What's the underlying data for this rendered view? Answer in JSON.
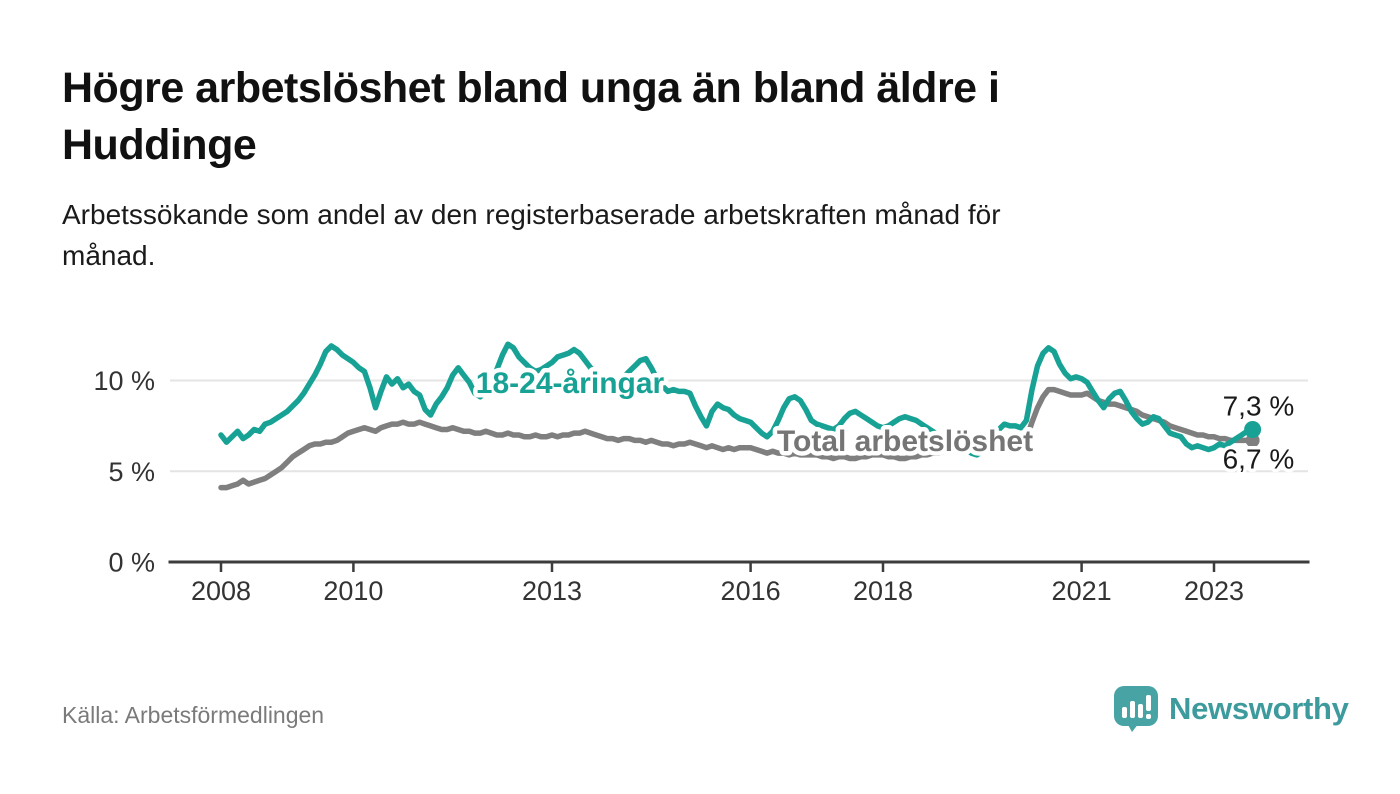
{
  "header": {
    "title_line1": "Högre arbetslöshet bland unga än bland äldre i",
    "title_line2": "Huddinge",
    "subtitle_line1": "Arbetssökande som andel av den registerbaserade arbetskraften månad för",
    "subtitle_line2": "månad."
  },
  "footer": {
    "source": "Källa: Arbetsförmedlingen",
    "brand": "Newsworthy"
  },
  "colors": {
    "youth_line": "#18a295",
    "total_line": "#7f7f7f",
    "total_label": "#757575",
    "axis": "#3c3c3c",
    "grid": "#e4e4e4",
    "text": "#333333",
    "brand_teal": "#3e9b9d",
    "logo_bubble": "#48a3a4"
  },
  "chart_data": {
    "type": "line",
    "title": "Arbetssökande som andel av den registerbaserade arbetskraften månad för månad",
    "x_unit": "month",
    "x_start": "2008-01",
    "x_end": "2023-08",
    "ylim": [
      0,
      12.5
    ],
    "grid": "horizontal gridlines at 5 % and 10 %",
    "legend_position": "inline labels on lines",
    "x_ticks": [
      {
        "label": "2008",
        "year": 2008
      },
      {
        "label": "2010",
        "year": 2010
      },
      {
        "label": "2013",
        "year": 2013
      },
      {
        "label": "2016",
        "year": 2016
      },
      {
        "label": "2018",
        "year": 2018
      },
      {
        "label": "2021",
        "year": 2021
      },
      {
        "label": "2023",
        "year": 2023
      }
    ],
    "y_ticks": [
      {
        "label": "0 %",
        "value": 0
      },
      {
        "label": "5 %",
        "value": 5
      },
      {
        "label": "10 %",
        "value": 10
      }
    ],
    "series": [
      {
        "name": "Total arbetslöshet",
        "end_label": "6,7 %",
        "values": [
          4.1,
          4.1,
          4.2,
          4.3,
          4.5,
          4.3,
          4.4,
          4.5,
          4.6,
          4.8,
          5.0,
          5.2,
          5.5,
          5.8,
          6.0,
          6.2,
          6.4,
          6.5,
          6.5,
          6.6,
          6.6,
          6.7,
          6.9,
          7.1,
          7.2,
          7.3,
          7.4,
          7.3,
          7.2,
          7.4,
          7.5,
          7.6,
          7.6,
          7.7,
          7.6,
          7.6,
          7.7,
          7.6,
          7.5,
          7.4,
          7.3,
          7.3,
          7.4,
          7.3,
          7.2,
          7.2,
          7.1,
          7.1,
          7.2,
          7.1,
          7.0,
          7.0,
          7.1,
          7.0,
          7.0,
          6.9,
          6.9,
          7.0,
          6.9,
          6.9,
          7.0,
          6.9,
          7.0,
          7.0,
          7.1,
          7.1,
          7.2,
          7.1,
          7.0,
          6.9,
          6.8,
          6.8,
          6.7,
          6.8,
          6.8,
          6.7,
          6.7,
          6.6,
          6.7,
          6.6,
          6.5,
          6.5,
          6.4,
          6.5,
          6.5,
          6.6,
          6.5,
          6.4,
          6.3,
          6.4,
          6.3,
          6.2,
          6.3,
          6.2,
          6.3,
          6.3,
          6.3,
          6.2,
          6.1,
          6.0,
          6.1,
          6.0,
          6.0,
          5.9,
          6.0,
          5.9,
          5.9,
          5.9,
          5.9,
          5.8,
          5.8,
          5.7,
          5.8,
          5.8,
          5.7,
          5.7,
          5.8,
          5.8,
          5.9,
          5.9,
          5.9,
          5.8,
          5.8,
          5.7,
          5.7,
          5.8,
          5.8,
          5.9,
          5.9,
          6.0,
          6.0,
          6.1,
          6.1,
          6.2,
          6.2,
          6.3,
          6.3,
          6.4,
          6.4,
          6.5,
          6.5,
          6.5,
          6.5,
          6.5,
          6.5,
          6.5,
          6.8,
          7.7,
          8.5,
          9.1,
          9.5,
          9.5,
          9.4,
          9.3,
          9.2,
          9.2,
          9.2,
          9.3,
          9.1,
          8.9,
          8.8,
          8.7,
          8.7,
          8.6,
          8.5,
          8.4,
          8.3,
          8.1,
          8.0,
          7.9,
          7.8,
          7.7,
          7.5,
          7.4,
          7.3,
          7.2,
          7.1,
          7.0,
          7.0,
          6.9,
          6.9,
          6.8,
          6.8,
          6.7,
          6.7,
          6.7,
          6.7,
          6.7
        ]
      },
      {
        "name": "18-24-åringar",
        "end_label": "7,3 %",
        "values": [
          7.0,
          6.6,
          6.9,
          7.2,
          6.8,
          7.0,
          7.3,
          7.2,
          7.6,
          7.7,
          7.9,
          8.1,
          8.3,
          8.6,
          8.9,
          9.3,
          9.8,
          10.3,
          10.9,
          11.6,
          11.9,
          11.7,
          11.4,
          11.2,
          11.0,
          10.7,
          10.5,
          9.6,
          8.5,
          9.4,
          10.2,
          9.8,
          10.1,
          9.6,
          9.8,
          9.4,
          9.2,
          8.4,
          8.1,
          8.7,
          9.1,
          9.6,
          10.3,
          10.7,
          10.3,
          9.9,
          9.3,
          9.1,
          9.4,
          9.8,
          10.6,
          11.4,
          12.0,
          11.8,
          11.3,
          11.0,
          10.7,
          10.5,
          10.6,
          10.8,
          11.0,
          11.3,
          11.4,
          11.5,
          11.7,
          11.5,
          11.1,
          10.7,
          10.4,
          10.1,
          10.0,
          10.2,
          10.0,
          10.2,
          10.5,
          10.8,
          11.1,
          11.2,
          10.7,
          10.1,
          9.7,
          9.4,
          9.5,
          9.4,
          9.4,
          9.3,
          8.6,
          8.0,
          7.5,
          8.3,
          8.7,
          8.5,
          8.4,
          8.1,
          7.9,
          7.8,
          7.7,
          7.4,
          7.1,
          6.9,
          7.2,
          7.8,
          8.5,
          9.0,
          9.1,
          8.9,
          8.4,
          7.8,
          7.6,
          7.5,
          7.4,
          7.3,
          7.5,
          7.9,
          8.2,
          8.3,
          8.1,
          7.9,
          7.7,
          7.5,
          7.4,
          7.5,
          7.7,
          7.9,
          8.0,
          7.9,
          7.8,
          7.6,
          7.4,
          7.2,
          7.0,
          6.9,
          6.8,
          6.6,
          6.4,
          6.2,
          6.0,
          5.9,
          6.1,
          6.5,
          6.9,
          7.3,
          7.6,
          7.5,
          7.5,
          7.4,
          7.8,
          9.5,
          10.8,
          11.5,
          11.8,
          11.6,
          10.9,
          10.4,
          10.1,
          10.2,
          10.1,
          9.9,
          9.4,
          8.9,
          8.5,
          9.0,
          9.3,
          9.4,
          8.9,
          8.3,
          7.9,
          7.6,
          7.7,
          8.0,
          7.9,
          7.5,
          7.1,
          7.0,
          6.9,
          6.5,
          6.3,
          6.4,
          6.3,
          6.2,
          6.3,
          6.5,
          6.4,
          6.6,
          6.8,
          7.0,
          7.2,
          7.3
        ]
      }
    ]
  }
}
